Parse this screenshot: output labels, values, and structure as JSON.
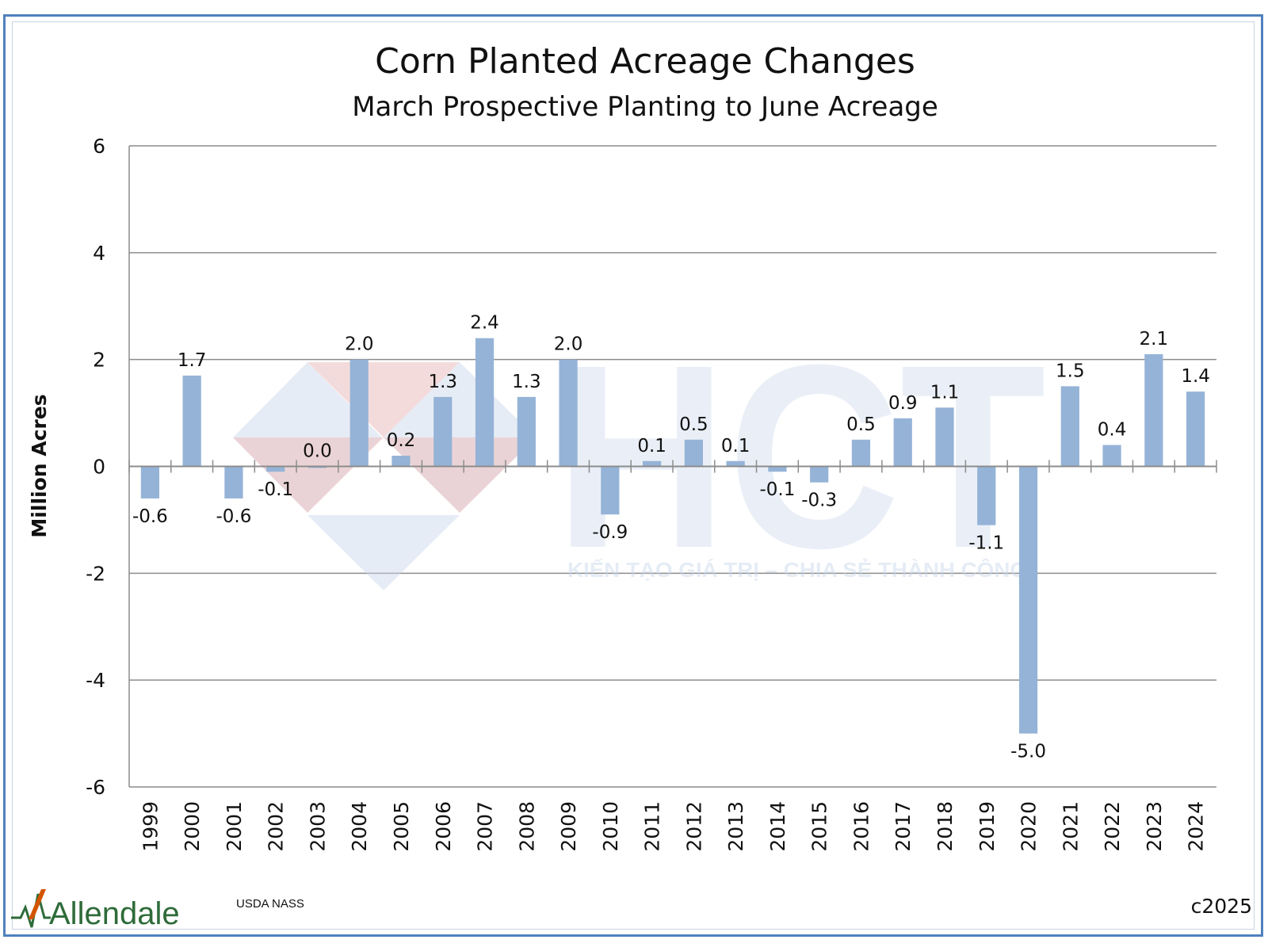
{
  "chart_data": {
    "type": "bar",
    "title": "Corn Planted Acreage Changes",
    "subtitle": "March Prospective Planting to June Acreage",
    "xlabel": "",
    "ylabel": "Million Acres",
    "ylim": [
      -6,
      6
    ],
    "yticks": [
      "6",
      "4",
      "2",
      "0",
      "-2",
      "-4",
      "-6"
    ],
    "grid": true,
    "bar_color": "#95b3d7",
    "categories": [
      "1999",
      "2000",
      "2001",
      "2002",
      "2003",
      "2004",
      "2005",
      "2006",
      "2007",
      "2008",
      "2009",
      "2010",
      "2011",
      "2012",
      "2013",
      "2014",
      "2015",
      "2016",
      "2017",
      "2018",
      "2019",
      "2020",
      "2021",
      "2022",
      "2023",
      "2024"
    ],
    "values": [
      -0.6,
      1.7,
      -0.6,
      -0.1,
      0.0,
      2.0,
      0.2,
      1.3,
      2.4,
      1.3,
      2.0,
      -0.9,
      0.1,
      0.5,
      0.1,
      -0.1,
      -0.3,
      0.5,
      0.9,
      1.1,
      -1.1,
      -5.0,
      1.5,
      0.4,
      2.1,
      1.4
    ],
    "data_labels": [
      "-0.6",
      "1.7",
      "-0.6",
      "-0.1",
      "0.0",
      "2.0",
      "0.2",
      "1.3",
      "2.4",
      "1.3",
      "2.0",
      "-0.9",
      "0.1",
      "0.5",
      "0.1",
      "-0.1",
      "-0.3",
      "0.5",
      "0.9",
      "1.1",
      "-1.1",
      "-5.0",
      "1.5",
      "0.4",
      "2.1",
      "1.4"
    ]
  },
  "footer": {
    "logo": "Allendale",
    "source": "USDA NASS",
    "copyright": "c2025"
  },
  "watermark": {
    "logo_letters": "HCT",
    "tagline": "KIẾN TẠO GIÁ TRỊ – CHIA SẺ THÀNH CÔNG"
  }
}
